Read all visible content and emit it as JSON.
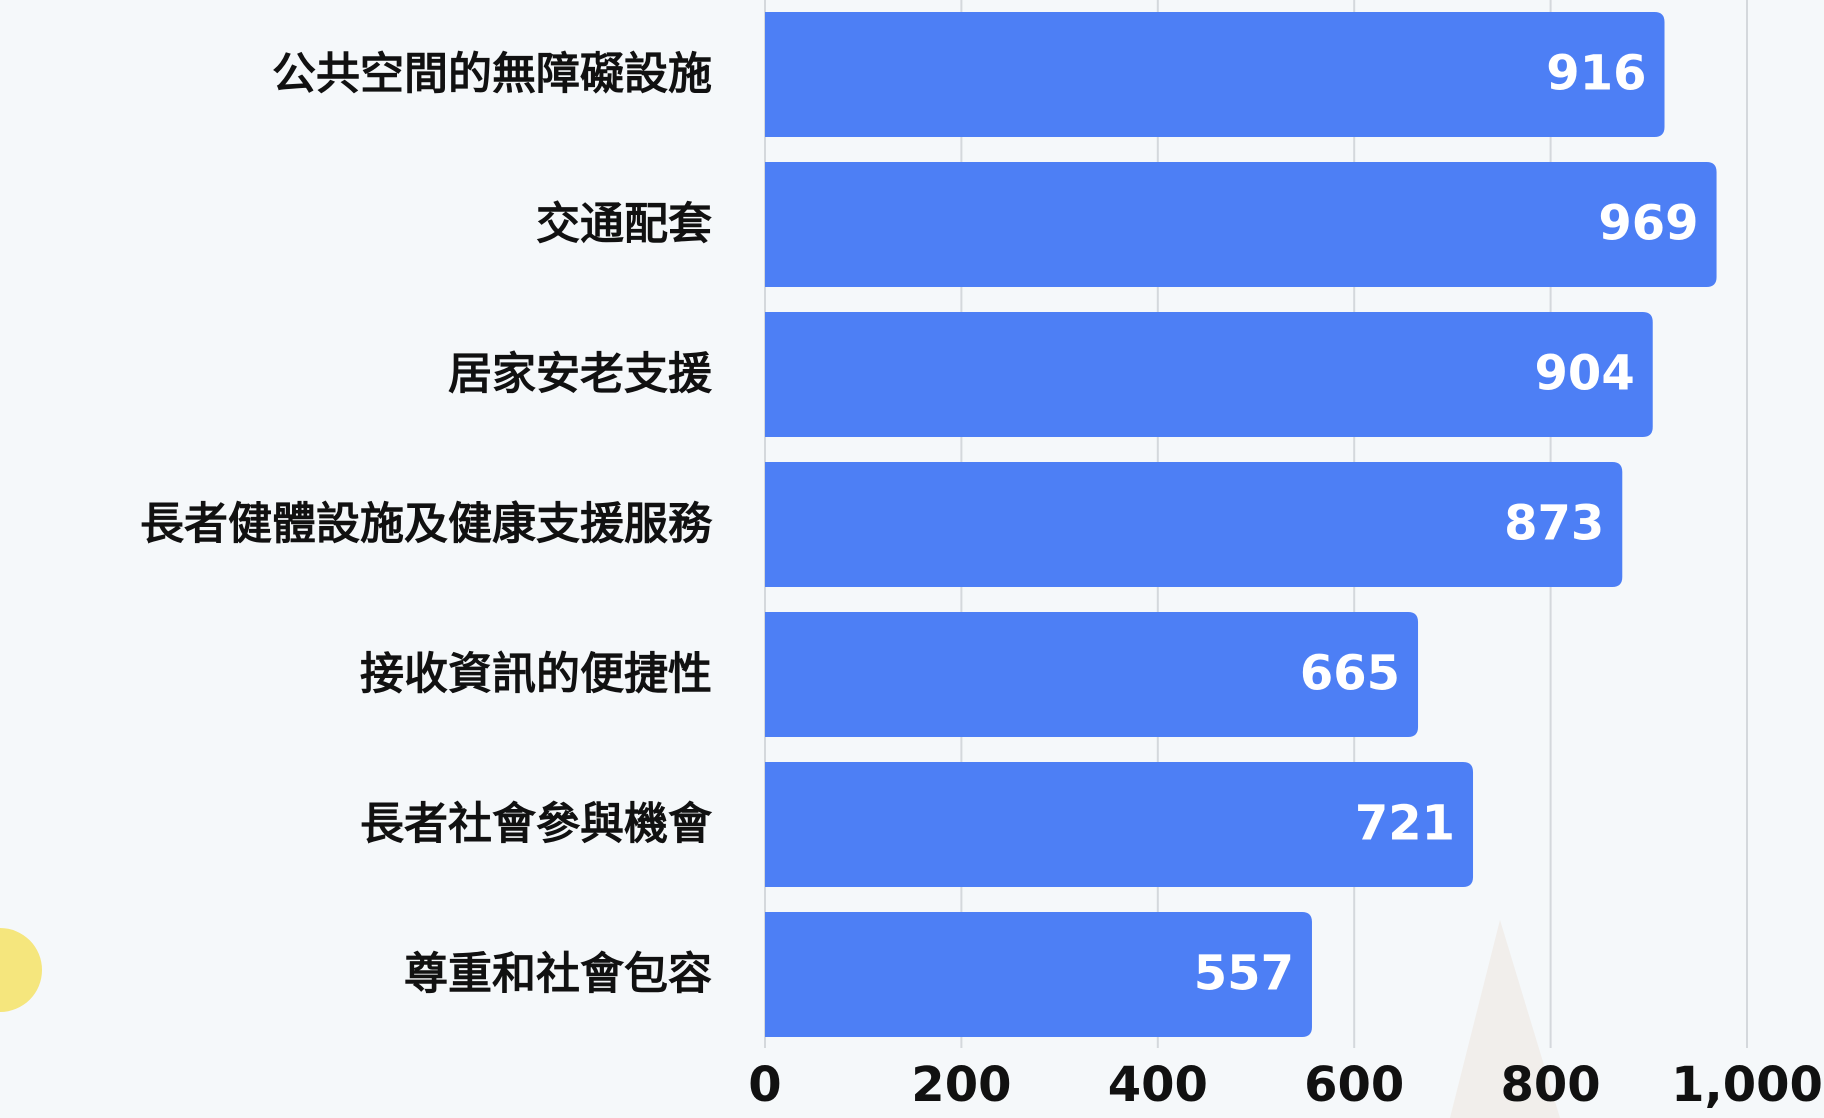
{
  "chart_data": {
    "type": "bar",
    "orientation": "horizontal",
    "categories": [
      "公共空間的無障礙設施",
      "交通配套",
      "居家安老支援",
      "長者健體設施及健康支援服務",
      "接收資訊的便捷性",
      "長者社會參與機會",
      "尊重和社會包容"
    ],
    "values": [
      916,
      969,
      904,
      873,
      665,
      721,
      557
    ],
    "color": "#4d7ff5",
    "xlim": [
      0,
      1000
    ],
    "xticks": [
      0,
      200,
      400,
      600,
      800,
      {
        "value": 1000,
        "label": "1,000"
      }
    ],
    "grid": true
  }
}
